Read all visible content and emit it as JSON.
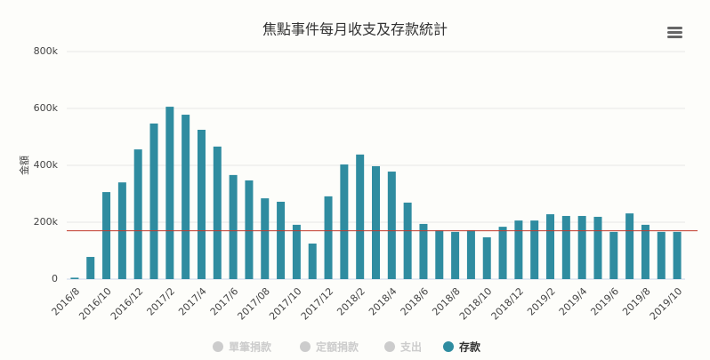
{
  "chart_data": {
    "type": "bar",
    "title": "焦點事件每月收支及存款統計",
    "y_label": "金額",
    "categories": [
      "2016/8",
      null,
      "2016/10",
      null,
      "2016/12",
      null,
      "2017/2",
      null,
      "2017/4",
      null,
      "2017/6",
      null,
      "2017/08",
      null,
      "2017/10",
      null,
      "2017/12",
      null,
      "2018/2",
      null,
      "2018/4",
      null,
      "2018/6",
      null,
      "2018/8",
      null,
      "2018/10",
      null,
      "2018/12",
      null,
      "2019/2",
      null,
      "2019/4",
      null,
      "2019/6",
      null,
      "2019/8",
      null,
      "2019/10"
    ],
    "series": [
      {
        "name": "單筆捐款",
        "color": "#cccccc",
        "visible": false
      },
      {
        "name": "定額捐款",
        "color": "#cccccc",
        "visible": false
      },
      {
        "name": "支出",
        "color": "#cccccc",
        "visible": false
      },
      {
        "name": "存款",
        "color": "#2f8ca0",
        "visible": true,
        "values": [
          5000,
          78000,
          306000,
          340000,
          456000,
          547000,
          606000,
          578000,
          525000,
          466000,
          366000,
          347000,
          284000,
          272000,
          191000,
          125000,
          291000,
          403000,
          438000,
          397000,
          378000,
          269000,
          194000,
          172000,
          166000,
          172000,
          147000,
          184000,
          206000,
          206000,
          228000,
          222000,
          222000,
          219000,
          166000,
          231000,
          191000,
          166000,
          166000
        ]
      }
    ],
    "reference_line": {
      "value": 170000,
      "color": "#c0392b"
    },
    "ylim": [
      0,
      800000
    ],
    "yticks": [
      0,
      {
        "value": 200000,
        "label": "200k"
      },
      {
        "value": 400000,
        "label": "400k"
      },
      {
        "value": 600000,
        "label": "600k"
      },
      {
        "value": 800000,
        "label": "800k"
      }
    ],
    "grid": true
  }
}
